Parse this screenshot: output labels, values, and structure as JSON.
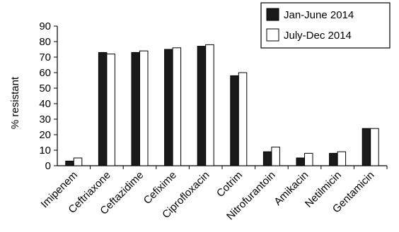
{
  "chart_data": {
    "type": "bar",
    "title": "",
    "xlabel": "",
    "ylabel": "% resistant",
    "ylim": [
      0,
      90
    ],
    "yticks": [
      0,
      10,
      20,
      30,
      40,
      50,
      60,
      70,
      80,
      90
    ],
    "grid": false,
    "legend_position": "top-right",
    "categories": [
      "Imipenem",
      "Ceftriaxone",
      "Ceftazidime",
      "Cefixime",
      "Ciprofloxacin",
      "Cotrim",
      "Nitrofurantoin",
      "Amikacin",
      "Netilmicin",
      "Gentamicin"
    ],
    "series": [
      {
        "name": "Jan-June 2014",
        "color": "#1a1a1a",
        "values": [
          3,
          73,
          73,
          75,
          77,
          58,
          9,
          5,
          8,
          24
        ]
      },
      {
        "name": "July-Dec 2014",
        "color": "#ffffff",
        "values": [
          5,
          72,
          74,
          76,
          78,
          60,
          12,
          8,
          9,
          24
        ]
      }
    ]
  }
}
